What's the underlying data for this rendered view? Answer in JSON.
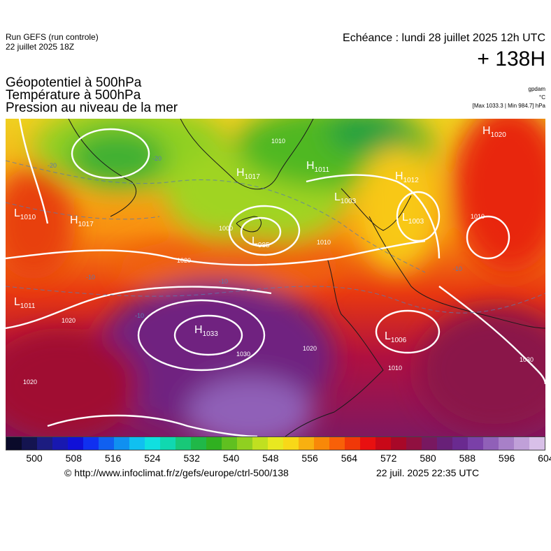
{
  "header": {
    "run_line1": "Run GEFS (run controle)",
    "run_line2": "22 juillet 2025 18Z",
    "echeance": "Echéance : lundi 28 juillet 2025 12h UTC",
    "lead": "+ 138H"
  },
  "titles": {
    "line1": "Géopotentiel à 500hPa",
    "line2": "Température à 500hPa",
    "line3": "Pression au niveau de la mer"
  },
  "units": {
    "gpdam": "gpdam",
    "celsius": "°C",
    "pressure": "[Max 1033.3 | Min 984.7] hPa"
  },
  "pressure_centers": [
    {
      "type": "H",
      "value": "1017"
    },
    {
      "type": "H",
      "value": "1011"
    },
    {
      "type": "H",
      "value": "1012"
    },
    {
      "type": "H",
      "value": "1020"
    },
    {
      "type": "H",
      "value": "1017"
    },
    {
      "type": "H",
      "value": "1033"
    },
    {
      "type": "L",
      "value": "1010"
    },
    {
      "type": "L",
      "value": "1011"
    },
    {
      "type": "L",
      "value": "985"
    },
    {
      "type": "L",
      "value": "1003"
    },
    {
      "type": "L",
      "value": "1003"
    },
    {
      "type": "L",
      "value": "1006"
    }
  ],
  "isobar_labels": [
    "1020",
    "1020",
    "1020",
    "1020",
    "1030",
    "1010",
    "1010",
    "1000",
    "1010",
    "1010",
    "1030"
  ],
  "isotherm_labels": [
    "-20",
    "-10",
    "-10",
    "-10",
    "-10",
    "-20"
  ],
  "colorbar": {
    "colors": [
      "#0a0a2a",
      "#141450",
      "#1c1c80",
      "#1818b0",
      "#1010d8",
      "#1030f0",
      "#1060f0",
      "#1090f0",
      "#10c0f0",
      "#10e0e0",
      "#10d8b0",
      "#18c878",
      "#20b848",
      "#30b020",
      "#60c020",
      "#90d020",
      "#c0e020",
      "#e8e820",
      "#f8d818",
      "#f8b010",
      "#f88808",
      "#f86008",
      "#f03808",
      "#e81010",
      "#c80818",
      "#a80828",
      "#901040",
      "#781860",
      "#682078",
      "#6a2a90",
      "#7a40a8",
      "#9060b8",
      "#a880c8",
      "#c0a0d8",
      "#d8c0e8"
    ],
    "ticks": [
      "500",
      "508",
      "516",
      "524",
      "532",
      "540",
      "548",
      "556",
      "564",
      "572",
      "580",
      "588",
      "596",
      "604"
    ]
  },
  "footer": {
    "credit": "© http://www.infoclimat.fr/z/gefs/europe/ctrl-500/138",
    "timestamp": "22 juil. 2025 22:35 UTC"
  }
}
